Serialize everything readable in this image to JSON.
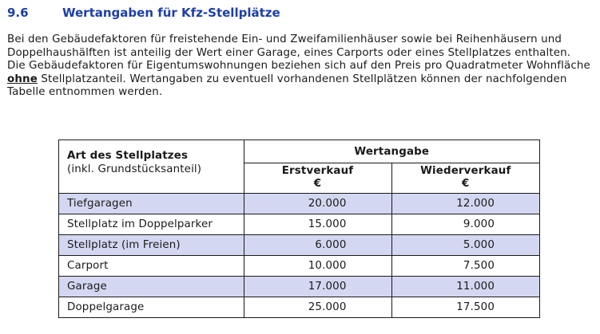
{
  "section": {
    "number": "9.6",
    "title": "Wertangaben für Kfz-Stellplätze"
  },
  "paragraphs": {
    "p1": "Bei den Gebäudefaktoren für freistehende Ein- und Zweifamilienhäuser sowie bei Reihenhäusern und Doppelhaushälften ist anteilig der Wert einer Garage, eines Carports oder eines Stellplatzes enthalten.",
    "p2_before": "Die Gebäudefaktoren für Eigentumswohnungen beziehen sich auf den Preis pro Quadratmeter Wohnfläche ",
    "p2_emphasis": "ohne",
    "p2_after": " Stellplatzanteil. Wertangaben zu eventuell vorhandenen Stellplätzen können der nachfolgenden Tabelle entnommen werden."
  },
  "table": {
    "col1_header": "Art des Stellplatzes",
    "col1_subheader": "(inkl. Grundstücksanteil)",
    "group_header": "Wertangabe",
    "col2_header": "Erstverkauf",
    "col2_unit": "€",
    "col3_header": "Wiederverkauf",
    "col3_unit": "€",
    "rows": [
      {
        "type": "Tiefgaragen",
        "erstverkauf": "20.000",
        "wiederverkauf": "12.000"
      },
      {
        "type": "Stellplatz im Doppelparker",
        "erstverkauf": "15.000",
        "wiederverkauf": "9.000"
      },
      {
        "type": "Stellplatz (im Freien)",
        "erstverkauf": "6.000",
        "wiederverkauf": "5.000"
      },
      {
        "type": "Carport",
        "erstverkauf": "10.000",
        "wiederverkauf": "7.500"
      },
      {
        "type": "Garage",
        "erstverkauf": "17.000",
        "wiederverkauf": "11.000"
      },
      {
        "type": "Doppelgarage",
        "erstverkauf": "25.000",
        "wiederverkauf": "17.500"
      }
    ]
  },
  "colors": {
    "heading": "#1e3fa8",
    "row_shade": "#d4d7f1"
  }
}
